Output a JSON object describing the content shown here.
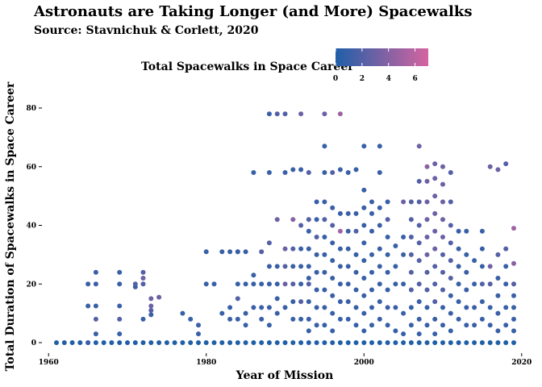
{
  "chart_data": {
    "type": "scatter",
    "title": "Astronauts are Taking Longer (and More) Spacewalks",
    "subtitle": "Source: Stavnichuk & Corlett, 2020",
    "xlabel": "Year of Mission",
    "ylabel": "Total Duration of Spacewalks in Space Career",
    "xlim": [
      1959,
      2020
    ],
    "ylim": [
      -3,
      85
    ],
    "x_ticks": [
      1960,
      1980,
      2000,
      2020
    ],
    "y_ticks": [
      0,
      20,
      40,
      60,
      80
    ],
    "grid": false,
    "legend": {
      "title": "Total Spacewalks in Space Career",
      "placement": "top",
      "type": "colorbar",
      "range": [
        0,
        7
      ],
      "ticks": [
        0,
        2,
        4,
        6
      ],
      "color_low": "#1f5fa8",
      "color_high": "#d464a0"
    },
    "points": [
      [
        1961,
        0,
        0
      ],
      [
        1962,
        0,
        0
      ],
      [
        1963,
        0,
        0
      ],
      [
        1964,
        0,
        0
      ],
      [
        1965,
        0,
        0
      ],
      [
        1965,
        0,
        1
      ],
      [
        1966,
        0,
        0
      ],
      [
        1967,
        0,
        0
      ],
      [
        1968,
        0,
        0
      ],
      [
        1969,
        0,
        0
      ],
      [
        1970,
        0,
        0
      ],
      [
        1971,
        0,
        0
      ],
      [
        1972,
        0,
        0
      ],
      [
        1973,
        0,
        0
      ],
      [
        1974,
        0,
        0
      ],
      [
        1975,
        0,
        0
      ],
      [
        1976,
        0,
        0
      ],
      [
        1977,
        0,
        0
      ],
      [
        1978,
        0,
        0
      ],
      [
        1979,
        0,
        0
      ],
      [
        1980,
        0,
        0
      ],
      [
        1981,
        0,
        0
      ],
      [
        1982,
        0,
        0
      ],
      [
        1983,
        0,
        0
      ],
      [
        1984,
        0,
        0
      ],
      [
        1985,
        0,
        0
      ],
      [
        1986,
        0,
        0
      ],
      [
        1987,
        0,
        0
      ],
      [
        1988,
        0,
        0
      ],
      [
        1989,
        0,
        0
      ],
      [
        1990,
        0,
        0
      ],
      [
        1991,
        0,
        0
      ],
      [
        1992,
        0,
        0
      ],
      [
        1993,
        0,
        0
      ],
      [
        1994,
        0,
        0
      ],
      [
        1995,
        0,
        0
      ],
      [
        1996,
        0,
        0
      ],
      [
        1997,
        0,
        0
      ],
      [
        1998,
        0,
        0
      ],
      [
        1999,
        0,
        0
      ],
      [
        2000,
        0,
        0
      ],
      [
        2001,
        0,
        0
      ],
      [
        2002,
        0,
        0
      ],
      [
        2003,
        0,
        0
      ],
      [
        2004,
        0,
        0
      ],
      [
        2005,
        0,
        0
      ],
      [
        2006,
        0,
        0
      ],
      [
        2007,
        0,
        0
      ],
      [
        2008,
        0,
        0
      ],
      [
        2009,
        0,
        0
      ],
      [
        2010,
        0,
        0
      ],
      [
        2011,
        0,
        0
      ],
      [
        2012,
        0,
        0
      ],
      [
        2013,
        0,
        0
      ],
      [
        2014,
        0,
        0
      ],
      [
        2015,
        0,
        0
      ],
      [
        2016,
        0,
        0
      ],
      [
        2017,
        0,
        0
      ],
      [
        2018,
        0,
        0
      ],
      [
        2019,
        0,
        0
      ],
      [
        1965,
        20,
        1
      ],
      [
        1965,
        12.5,
        1
      ],
      [
        1966,
        24,
        1
      ],
      [
        1966,
        20,
        1
      ],
      [
        1966,
        12.5,
        1
      ],
      [
        1966,
        8,
        2
      ],
      [
        1966,
        3,
        1
      ],
      [
        1969,
        24,
        1
      ],
      [
        1969,
        20,
        1
      ],
      [
        1969,
        12.5,
        1
      ],
      [
        1969,
        8,
        2
      ],
      [
        1969,
        3,
        1
      ],
      [
        1971,
        19,
        1
      ],
      [
        1971,
        20,
        2
      ],
      [
        1972,
        24,
        2
      ],
      [
        1972,
        22,
        3
      ],
      [
        1972,
        20,
        2
      ],
      [
        1972,
        8,
        1
      ],
      [
        1973,
        15,
        3
      ],
      [
        1973,
        12.5,
        3
      ],
      [
        1973,
        11,
        2
      ],
      [
        1973,
        9.5,
        1
      ],
      [
        1974,
        15.5,
        3
      ],
      [
        1977,
        10,
        1
      ],
      [
        1978,
        8,
        1
      ],
      [
        1979,
        6,
        1
      ],
      [
        1979,
        3,
        1
      ],
      [
        1980,
        31,
        1
      ],
      [
        1980,
        20,
        1
      ],
      [
        1981,
        20,
        1
      ],
      [
        1982,
        31,
        1
      ],
      [
        1982,
        10,
        1
      ],
      [
        1983,
        31,
        1
      ],
      [
        1983,
        12,
        1
      ],
      [
        1983,
        8,
        1
      ],
      [
        1984,
        31,
        3
      ],
      [
        1984,
        31,
        1
      ],
      [
        1984,
        20,
        1
      ],
      [
        1984,
        15,
        2
      ],
      [
        1984,
        8,
        1
      ],
      [
        1985,
        31,
        1
      ],
      [
        1985,
        20,
        1
      ],
      [
        1985,
        10,
        1
      ],
      [
        1985,
        6,
        1
      ],
      [
        1986,
        58,
        1
      ],
      [
        1986,
        23,
        1
      ],
      [
        1986,
        20,
        1
      ],
      [
        1986,
        12,
        1
      ],
      [
        1987,
        31,
        2
      ],
      [
        1987,
        20,
        1
      ],
      [
        1987,
        12,
        1
      ],
      [
        1987,
        8,
        1
      ],
      [
        1988,
        78,
        1
      ],
      [
        1988,
        58,
        1
      ],
      [
        1988,
        34,
        2
      ],
      [
        1988,
        26,
        1
      ],
      [
        1988,
        20,
        1
      ],
      [
        1988,
        12,
        1
      ],
      [
        1988,
        6,
        1
      ],
      [
        1989,
        78,
        2
      ],
      [
        1989,
        42,
        3
      ],
      [
        1989,
        26,
        1
      ],
      [
        1989,
        20,
        1
      ],
      [
        1989,
        15,
        1
      ],
      [
        1989,
        10,
        1
      ],
      [
        1990,
        78,
        2
      ],
      [
        1990,
        58,
        1
      ],
      [
        1990,
        32,
        3
      ],
      [
        1990,
        26,
        2
      ],
      [
        1990,
        20,
        3
      ],
      [
        1990,
        12,
        1
      ],
      [
        1991,
        59,
        1
      ],
      [
        1991,
        42,
        4
      ],
      [
        1991,
        32,
        2
      ],
      [
        1991,
        26,
        1
      ],
      [
        1991,
        20,
        2
      ],
      [
        1991,
        14,
        1
      ],
      [
        1991,
        8,
        1
      ],
      [
        1992,
        78,
        3
      ],
      [
        1992,
        59,
        1
      ],
      [
        1992,
        40,
        2
      ],
      [
        1992,
        32,
        1
      ],
      [
        1992,
        26,
        1
      ],
      [
        1992,
        20,
        1
      ],
      [
        1992,
        14,
        2
      ],
      [
        1992,
        8,
        1
      ],
      [
        1993,
        58,
        2
      ],
      [
        1993,
        42,
        2
      ],
      [
        1993,
        38,
        1
      ],
      [
        1993,
        32,
        1
      ],
      [
        1993,
        26,
        1
      ],
      [
        1993,
        22,
        1
      ],
      [
        1993,
        20,
        2
      ],
      [
        1993,
        14,
        1
      ],
      [
        1993,
        8,
        1
      ],
      [
        1993,
        4,
        1
      ],
      [
        1994,
        48,
        1
      ],
      [
        1994,
        42,
        1
      ],
      [
        1994,
        36,
        2
      ],
      [
        1994,
        30,
        1
      ],
      [
        1994,
        24,
        1
      ],
      [
        1994,
        18,
        1
      ],
      [
        1994,
        12,
        1
      ],
      [
        1994,
        6,
        1
      ],
      [
        1995,
        78,
        3
      ],
      [
        1995,
        67,
        1
      ],
      [
        1995,
        58,
        1
      ],
      [
        1995,
        48,
        1
      ],
      [
        1995,
        42,
        2
      ],
      [
        1995,
        36,
        1
      ],
      [
        1995,
        30,
        1
      ],
      [
        1995,
        24,
        1
      ],
      [
        1995,
        18,
        1
      ],
      [
        1995,
        12,
        1
      ],
      [
        1995,
        6,
        1
      ],
      [
        1996,
        58,
        2
      ],
      [
        1996,
        46,
        1
      ],
      [
        1996,
        40,
        2
      ],
      [
        1996,
        34,
        1
      ],
      [
        1996,
        28,
        1
      ],
      [
        1996,
        22,
        1
      ],
      [
        1996,
        16,
        1
      ],
      [
        1996,
        10,
        1
      ],
      [
        1996,
        4,
        1
      ],
      [
        1997,
        78,
        5
      ],
      [
        1997,
        59,
        1
      ],
      [
        1997,
        44,
        1
      ],
      [
        1997,
        38,
        5
      ],
      [
        1997,
        32,
        1
      ],
      [
        1997,
        26,
        1
      ],
      [
        1997,
        20,
        1
      ],
      [
        1997,
        14,
        1
      ],
      [
        1997,
        8,
        1
      ],
      [
        1998,
        58,
        1
      ],
      [
        1998,
        44,
        1
      ],
      [
        1998,
        38,
        1
      ],
      [
        1998,
        32,
        1
      ],
      [
        1998,
        26,
        1
      ],
      [
        1998,
        20,
        1
      ],
      [
        1998,
        14,
        1
      ],
      [
        1998,
        8,
        1
      ],
      [
        1999,
        59,
        1
      ],
      [
        1999,
        44,
        1
      ],
      [
        1999,
        38,
        2
      ],
      [
        1999,
        30,
        1
      ],
      [
        1999,
        24,
        1
      ],
      [
        1999,
        18,
        1
      ],
      [
        1999,
        12,
        1
      ],
      [
        1999,
        6,
        1
      ],
      [
        2000,
        67,
        1
      ],
      [
        2000,
        52,
        1
      ],
      [
        2000,
        46,
        1
      ],
      [
        2000,
        40,
        1
      ],
      [
        2000,
        34,
        1
      ],
      [
        2000,
        28,
        1
      ],
      [
        2000,
        22,
        1
      ],
      [
        2000,
        16,
        1
      ],
      [
        2000,
        10,
        1
      ],
      [
        2000,
        4,
        1
      ],
      [
        2001,
        48,
        1
      ],
      [
        2001,
        44,
        1
      ],
      [
        2001,
        38,
        1
      ],
      [
        2001,
        30,
        1
      ],
      [
        2001,
        24,
        1
      ],
      [
        2001,
        18,
        1
      ],
      [
        2001,
        12,
        1
      ],
      [
        2001,
        6,
        1
      ],
      [
        2002,
        67,
        1
      ],
      [
        2002,
        58,
        1
      ],
      [
        2002,
        46,
        1
      ],
      [
        2002,
        40,
        1
      ],
      [
        2002,
        32,
        1
      ],
      [
        2002,
        26,
        1
      ],
      [
        2002,
        20,
        1
      ],
      [
        2002,
        14,
        1
      ],
      [
        2002,
        8,
        1
      ],
      [
        2003,
        48,
        1
      ],
      [
        2003,
        42,
        2
      ],
      [
        2003,
        36,
        1
      ],
      [
        2003,
        30,
        1
      ],
      [
        2003,
        24,
        1
      ],
      [
        2003,
        18,
        1
      ],
      [
        2003,
        12,
        1
      ],
      [
        2003,
        6,
        1
      ],
      [
        2004,
        33,
        1
      ],
      [
        2004,
        26,
        1
      ],
      [
        2004,
        20,
        1
      ],
      [
        2004,
        12,
        1
      ],
      [
        2004,
        4,
        1
      ],
      [
        2005,
        48,
        3
      ],
      [
        2005,
        36,
        1
      ],
      [
        2005,
        30,
        1
      ],
      [
        2005,
        20,
        1
      ],
      [
        2005,
        10,
        1
      ],
      [
        2005,
        3,
        1
      ],
      [
        2006,
        48,
        2
      ],
      [
        2006,
        42,
        2
      ],
      [
        2006,
        36,
        2
      ],
      [
        2006,
        30,
        2
      ],
      [
        2006,
        24,
        2
      ],
      [
        2006,
        18,
        2
      ],
      [
        2006,
        12,
        1
      ],
      [
        2006,
        6,
        1
      ],
      [
        2007,
        67,
        3
      ],
      [
        2007,
        55,
        2
      ],
      [
        2007,
        48,
        2
      ],
      [
        2007,
        40,
        2
      ],
      [
        2007,
        34,
        2
      ],
      [
        2007,
        28,
        2
      ],
      [
        2007,
        20,
        2
      ],
      [
        2007,
        14,
        1
      ],
      [
        2007,
        8,
        1
      ],
      [
        2007,
        3,
        1
      ],
      [
        2008,
        60,
        4
      ],
      [
        2008,
        55,
        3
      ],
      [
        2008,
        48,
        3
      ],
      [
        2008,
        42,
        3
      ],
      [
        2008,
        36,
        3
      ],
      [
        2008,
        30,
        3
      ],
      [
        2008,
        24,
        2
      ],
      [
        2008,
        18,
        2
      ],
      [
        2008,
        12,
        1
      ],
      [
        2008,
        6,
        1
      ],
      [
        2009,
        61,
        3
      ],
      [
        2009,
        56,
        3
      ],
      [
        2009,
        50,
        3
      ],
      [
        2009,
        44,
        3
      ],
      [
        2009,
        38,
        3
      ],
      [
        2009,
        32,
        3
      ],
      [
        2009,
        26,
        2
      ],
      [
        2009,
        20,
        2
      ],
      [
        2009,
        14,
        2
      ],
      [
        2009,
        8,
        1
      ],
      [
        2009,
        3,
        1
      ],
      [
        2010,
        60,
        3
      ],
      [
        2010,
        54,
        3
      ],
      [
        2010,
        48,
        3
      ],
      [
        2010,
        42,
        3
      ],
      [
        2010,
        36,
        3
      ],
      [
        2010,
        30,
        2
      ],
      [
        2010,
        24,
        2
      ],
      [
        2010,
        18,
        2
      ],
      [
        2010,
        12,
        1
      ],
      [
        2010,
        6,
        1
      ],
      [
        2011,
        58,
        2
      ],
      [
        2011,
        48,
        2
      ],
      [
        2011,
        40,
        2
      ],
      [
        2011,
        34,
        2
      ],
      [
        2011,
        28,
        2
      ],
      [
        2011,
        22,
        2
      ],
      [
        2011,
        16,
        1
      ],
      [
        2011,
        10,
        1
      ],
      [
        2011,
        4,
        1
      ],
      [
        2012,
        38,
        1
      ],
      [
        2012,
        32,
        1
      ],
      [
        2012,
        26,
        1
      ],
      [
        2012,
        20,
        1
      ],
      [
        2012,
        14,
        1
      ],
      [
        2012,
        8,
        1
      ],
      [
        2013,
        38,
        1
      ],
      [
        2013,
        30,
        1
      ],
      [
        2013,
        24,
        1
      ],
      [
        2013,
        18,
        1
      ],
      [
        2013,
        12,
        1
      ],
      [
        2013,
        6,
        1
      ],
      [
        2014,
        28,
        1
      ],
      [
        2014,
        20,
        1
      ],
      [
        2014,
        12,
        1
      ],
      [
        2014,
        6,
        1
      ],
      [
        2015,
        38,
        1
      ],
      [
        2015,
        32,
        1
      ],
      [
        2015,
        26,
        1
      ],
      [
        2015,
        20,
        2
      ],
      [
        2015,
        14,
        1
      ],
      [
        2015,
        8,
        1
      ],
      [
        2016,
        60,
        3
      ],
      [
        2016,
        26,
        3
      ],
      [
        2016,
        20,
        2
      ],
      [
        2016,
        12,
        1
      ],
      [
        2016,
        6,
        1
      ],
      [
        2017,
        59,
        3
      ],
      [
        2017,
        30,
        2
      ],
      [
        2017,
        22,
        1
      ],
      [
        2017,
        16,
        1
      ],
      [
        2017,
        10,
        1
      ],
      [
        2017,
        4,
        1
      ],
      [
        2018,
        61,
        2
      ],
      [
        2018,
        32,
        2
      ],
      [
        2018,
        26,
        1
      ],
      [
        2018,
        20,
        1
      ],
      [
        2018,
        12,
        1
      ],
      [
        2018,
        6,
        1
      ],
      [
        2019,
        39,
        5
      ],
      [
        2019,
        27,
        4
      ],
      [
        2019,
        20,
        2
      ],
      [
        2019,
        16,
        1
      ],
      [
        2019,
        12,
        1
      ],
      [
        2019,
        8,
        1
      ],
      [
        2019,
        4,
        1
      ]
    ]
  }
}
